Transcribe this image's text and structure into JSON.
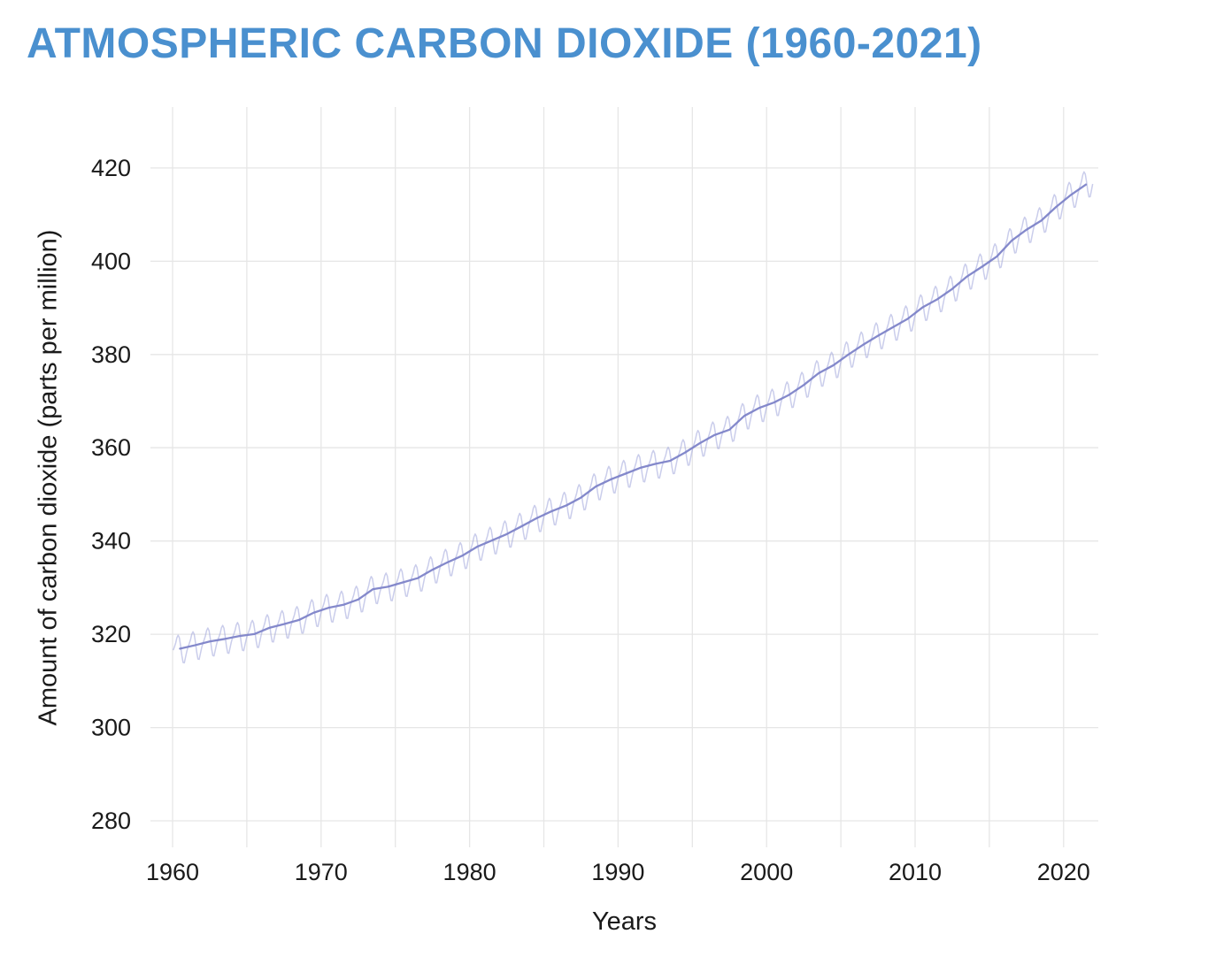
{
  "title": "ATMOSPHERIC CARBON DIOXIDE (1960-2021)",
  "colors": {
    "title": "#4a90cf",
    "trend_line": "#7d83c8",
    "seasonal_line": "#9fa4da",
    "grid": "#e6e6e6",
    "tick_text": "#1a1a1a"
  },
  "chart_data": {
    "type": "line",
    "title": "ATMOSPHERIC CARBON DIOXIDE (1960-2021)",
    "xlabel": "Years",
    "ylabel": "Amount of carbon dioxide (parts per million)",
    "xlim": [
      1958.5,
      2022.3
    ],
    "ylim": [
      274,
      433
    ],
    "x_ticks": [
      1960,
      1970,
      1980,
      1990,
      2000,
      2010,
      2020
    ],
    "y_ticks": [
      280,
      300,
      320,
      340,
      360,
      380,
      400,
      420
    ],
    "grid": true,
    "x_grid_interval_years": 5,
    "legend": "none",
    "series": [
      {
        "name": "monthly-mean-with-seasonal-cycle",
        "note": "annual mean plus seasonal_profile_ppm oscillation, light purple"
      },
      {
        "name": "annual-mean-trend",
        "note": "smooth darker purple line through annual means"
      }
    ],
    "years": [
      1960,
      1961,
      1962,
      1963,
      1964,
      1965,
      1966,
      1967,
      1968,
      1969,
      1970,
      1971,
      1972,
      1973,
      1974,
      1975,
      1976,
      1977,
      1978,
      1979,
      1980,
      1981,
      1982,
      1983,
      1984,
      1985,
      1986,
      1987,
      1988,
      1989,
      1990,
      1991,
      1992,
      1993,
      1994,
      1995,
      1996,
      1997,
      1998,
      1999,
      2000,
      2001,
      2002,
      2003,
      2004,
      2005,
      2006,
      2007,
      2008,
      2009,
      2010,
      2011,
      2012,
      2013,
      2014,
      2015,
      2016,
      2017,
      2018,
      2019,
      2020,
      2021
    ],
    "annual_mean_ppm": [
      316.91,
      317.64,
      318.45,
      318.99,
      319.62,
      320.04,
      321.37,
      322.18,
      323.05,
      324.62,
      325.68,
      326.32,
      327.46,
      329.68,
      330.19,
      331.12,
      332.03,
      333.84,
      335.41,
      336.84,
      338.76,
      340.12,
      341.48,
      343.15,
      344.87,
      346.35,
      347.61,
      349.31,
      351.69,
      353.2,
      354.45,
      355.7,
      356.54,
      357.21,
      358.96,
      360.97,
      362.74,
      363.88,
      366.84,
      368.54,
      369.71,
      371.32,
      373.45,
      375.98,
      377.7,
      379.98,
      382.09,
      384.02,
      385.83,
      387.64,
      390.1,
      391.85,
      394.06,
      396.74,
      398.81,
      401.01,
      404.41,
      406.76,
      408.72,
      411.66,
      414.24,
      416.45
    ],
    "seasonal_profile_ppm": [
      0.0,
      0.66,
      1.41,
      2.52,
      2.99,
      2.35,
      0.55,
      -1.57,
      -3.12,
      -3.25,
      -2.07,
      -0.9
    ]
  }
}
